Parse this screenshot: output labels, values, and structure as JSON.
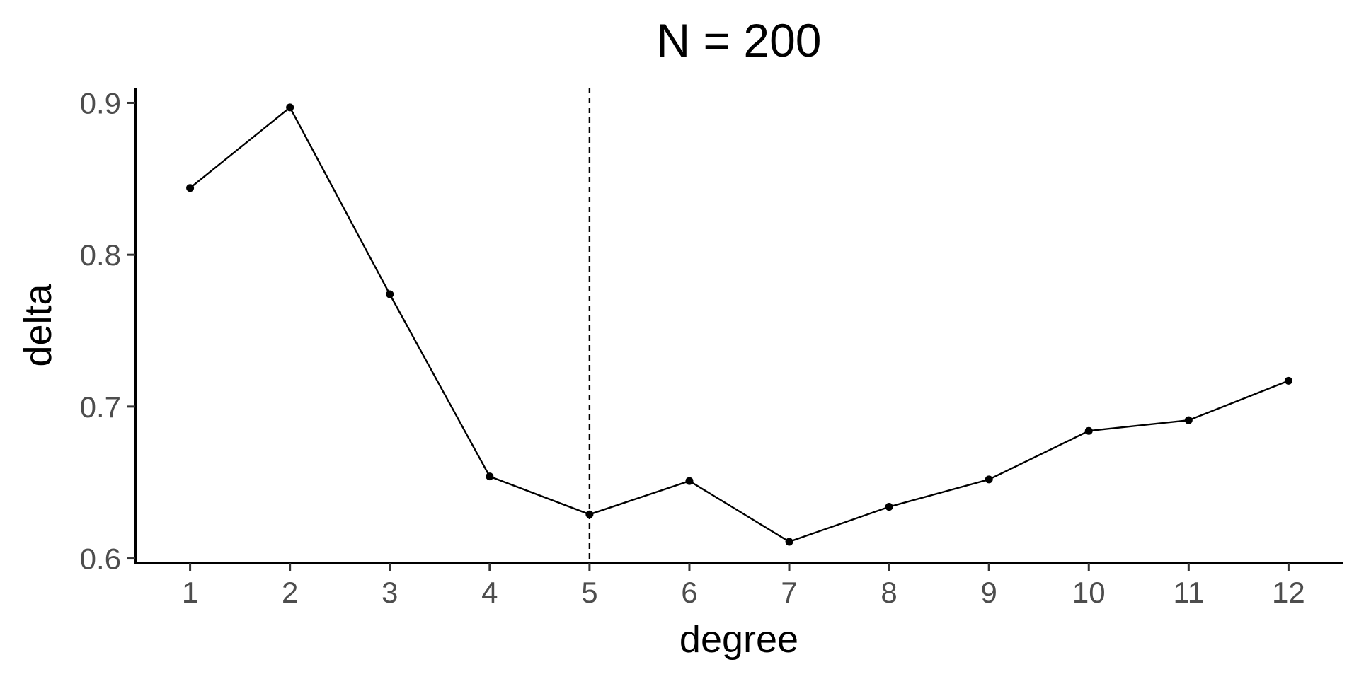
{
  "chart_data": {
    "type": "line",
    "title": "N = 200",
    "xlabel": "degree",
    "ylabel": "delta",
    "x": [
      1,
      2,
      3,
      4,
      5,
      6,
      7,
      8,
      9,
      10,
      11,
      12
    ],
    "y": [
      0.844,
      0.897,
      0.774,
      0.654,
      0.629,
      0.651,
      0.611,
      0.634,
      0.652,
      0.684,
      0.691,
      0.717
    ],
    "xlim": [
      0.45,
      12.55
    ],
    "ylim": [
      0.597,
      0.91
    ],
    "xticks": [
      1,
      2,
      3,
      4,
      5,
      6,
      7,
      8,
      9,
      10,
      11,
      12
    ],
    "yticks": [
      0.6,
      0.7,
      0.8,
      0.9
    ],
    "ytick_labels": [
      "0.6",
      "0.7",
      "0.8",
      "0.9"
    ],
    "reference_line": {
      "orientation": "vertical",
      "x": 5,
      "style": "dashed"
    },
    "grid": false,
    "legend": "none",
    "colors": {
      "series": "#000000",
      "tick_text": "#4d4d4d",
      "axis": "#000000"
    }
  }
}
